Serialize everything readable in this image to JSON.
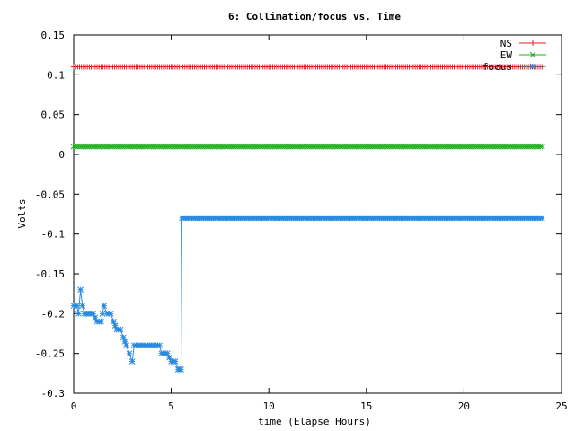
{
  "chart_data": {
    "type": "line",
    "title": "6: Collimation/focus vs. Time",
    "xlabel": "time (Elapse Hours)",
    "ylabel": "Volts",
    "xlim": [
      0,
      25
    ],
    "ylim": [
      -0.3,
      0.15
    ],
    "x_ticks": [
      "0",
      "5",
      "10",
      "15",
      "20",
      "25"
    ],
    "y_ticks": [
      "0.15",
      "0.1",
      "0.05",
      "0",
      "-0.05",
      "-0.1",
      "-0.15",
      "-0.2",
      "-0.25",
      "-0.3"
    ],
    "legend_position": "top-right",
    "grid": false,
    "series": [
      {
        "name": "NS",
        "color": "#e02020",
        "marker": "plus",
        "points": [
          [
            0,
            0.11
          ],
          [
            24,
            0.11
          ]
        ]
      },
      {
        "name": "EW",
        "color": "#20b020",
        "marker": "cross",
        "points": [
          [
            0,
            0.01
          ],
          [
            24,
            0.01
          ]
        ]
      },
      {
        "name": "focus",
        "color": "#2a8ae0",
        "marker": "star",
        "points": [
          [
            0,
            -0.19
          ],
          [
            0.15,
            -0.19
          ],
          [
            0.25,
            -0.2
          ],
          [
            0.35,
            -0.17
          ],
          [
            0.45,
            -0.19
          ],
          [
            0.55,
            -0.2
          ],
          [
            0.8,
            -0.2
          ],
          [
            1.0,
            -0.2
          ],
          [
            1.2,
            -0.21
          ],
          [
            1.4,
            -0.21
          ],
          [
            1.55,
            -0.19
          ],
          [
            1.7,
            -0.2
          ],
          [
            1.9,
            -0.2
          ],
          [
            2.05,
            -0.21
          ],
          [
            2.2,
            -0.22
          ],
          [
            2.4,
            -0.22
          ],
          [
            2.55,
            -0.23
          ],
          [
            2.7,
            -0.24
          ],
          [
            2.85,
            -0.25
          ],
          [
            3.0,
            -0.26
          ],
          [
            3.1,
            -0.24
          ],
          [
            3.5,
            -0.24
          ],
          [
            4.0,
            -0.24
          ],
          [
            4.4,
            -0.24
          ],
          [
            4.5,
            -0.25
          ],
          [
            4.8,
            -0.25
          ],
          [
            5.0,
            -0.26
          ],
          [
            5.2,
            -0.26
          ],
          [
            5.35,
            -0.27
          ],
          [
            5.5,
            -0.27
          ],
          [
            5.55,
            -0.08
          ],
          [
            24,
            -0.08
          ]
        ]
      }
    ]
  }
}
